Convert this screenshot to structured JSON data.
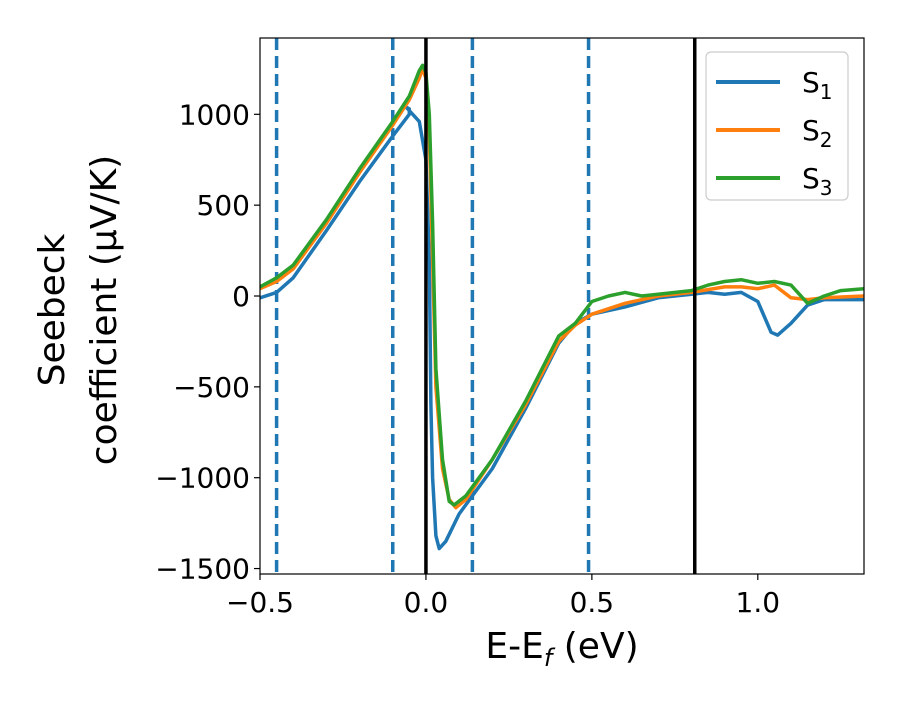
{
  "chart_data": {
    "type": "line",
    "xlabel": {
      "main": "E-E",
      "sub": "f",
      "tail": " (eV)"
    },
    "ylabel": {
      "line1": "Seebeck",
      "line2": "coefficient  (μV/K)"
    },
    "xlim": [
      -0.5,
      1.32
    ],
    "ylim": [
      -1530,
      1420
    ],
    "x_ticks": [
      -0.5,
      0.0,
      0.5,
      1.0
    ],
    "x_tick_labels": [
      "−0.5",
      "0.0",
      "0.5",
      "1.0"
    ],
    "y_ticks": [
      -1500,
      -1000,
      -500,
      0,
      500,
      1000
    ],
    "y_tick_labels": [
      "−1500",
      "−1000",
      "−500",
      "0",
      "500",
      "1000"
    ],
    "grid": false,
    "legend_position": "top-right",
    "vlines_dashed": {
      "x": [
        -0.45,
        -0.1,
        0.14,
        0.49
      ],
      "color": "#1f77b4"
    },
    "vlines_solid": {
      "x": [
        0.0,
        0.81
      ],
      "color": "#000000"
    },
    "series": [
      {
        "name": "S",
        "sub": "1",
        "color": "#1f77b4",
        "points": [
          [
            -0.5,
            -10
          ],
          [
            -0.45,
            20
          ],
          [
            -0.4,
            100
          ],
          [
            -0.3,
            360
          ],
          [
            -0.2,
            630
          ],
          [
            -0.1,
            880
          ],
          [
            -0.05,
            1000
          ],
          [
            -0.05,
            1030
          ],
          [
            -0.06,
            1040
          ],
          [
            -0.02,
            960
          ],
          [
            0.0,
            750
          ],
          [
            0.01,
            200
          ],
          [
            0.015,
            -600
          ],
          [
            0.02,
            -1000
          ],
          [
            0.03,
            -1320
          ],
          [
            0.04,
            -1390
          ],
          [
            0.06,
            -1350
          ],
          [
            0.1,
            -1200
          ],
          [
            0.2,
            -950
          ],
          [
            0.3,
            -620
          ],
          [
            0.4,
            -260
          ],
          [
            0.45,
            -150
          ],
          [
            0.5,
            -100
          ],
          [
            0.6,
            -60
          ],
          [
            0.7,
            -10
          ],
          [
            0.8,
            10
          ],
          [
            0.85,
            20
          ],
          [
            0.9,
            10
          ],
          [
            0.95,
            20
          ],
          [
            1.0,
            -30
          ],
          [
            1.04,
            -200
          ],
          [
            1.06,
            -215
          ],
          [
            1.1,
            -150
          ],
          [
            1.15,
            -50
          ],
          [
            1.2,
            -20
          ],
          [
            1.32,
            -20
          ]
        ]
      },
      {
        "name": "S",
        "sub": "2",
        "color": "#ff7f0e",
        "points": [
          [
            -0.5,
            40
          ],
          [
            -0.45,
            80
          ],
          [
            -0.4,
            150
          ],
          [
            -0.3,
            400
          ],
          [
            -0.2,
            680
          ],
          [
            -0.1,
            940
          ],
          [
            -0.05,
            1080
          ],
          [
            -0.02,
            1200
          ],
          [
            -0.01,
            1250
          ],
          [
            0.0,
            1200
          ],
          [
            0.01,
            900
          ],
          [
            0.02,
            200
          ],
          [
            0.03,
            -500
          ],
          [
            0.05,
            -950
          ],
          [
            0.07,
            -1120
          ],
          [
            0.09,
            -1165
          ],
          [
            0.12,
            -1120
          ],
          [
            0.2,
            -900
          ],
          [
            0.3,
            -600
          ],
          [
            0.4,
            -250
          ],
          [
            0.45,
            -160
          ],
          [
            0.5,
            -100
          ],
          [
            0.6,
            -40
          ],
          [
            0.7,
            0
          ],
          [
            0.8,
            20
          ],
          [
            0.9,
            50
          ],
          [
            0.95,
            50
          ],
          [
            1.0,
            40
          ],
          [
            1.05,
            60
          ],
          [
            1.1,
            -10
          ],
          [
            1.15,
            -20
          ],
          [
            1.2,
            -10
          ],
          [
            1.32,
            0
          ]
        ]
      },
      {
        "name": "S",
        "sub": "3",
        "color": "#2ca02c",
        "points": [
          [
            -0.5,
            50
          ],
          [
            -0.45,
            100
          ],
          [
            -0.4,
            170
          ],
          [
            -0.3,
            420
          ],
          [
            -0.2,
            700
          ],
          [
            -0.1,
            960
          ],
          [
            -0.05,
            1100
          ],
          [
            -0.02,
            1240
          ],
          [
            -0.01,
            1270
          ],
          [
            0.0,
            1230
          ],
          [
            0.01,
            1000
          ],
          [
            0.02,
            400
          ],
          [
            0.03,
            -400
          ],
          [
            0.05,
            -900
          ],
          [
            0.07,
            -1130
          ],
          [
            0.085,
            -1150
          ],
          [
            0.12,
            -1100
          ],
          [
            0.2,
            -900
          ],
          [
            0.3,
            -580
          ],
          [
            0.4,
            -220
          ],
          [
            0.45,
            -150
          ],
          [
            0.5,
            -30
          ],
          [
            0.55,
            0
          ],
          [
            0.6,
            20
          ],
          [
            0.65,
            0
          ],
          [
            0.7,
            10
          ],
          [
            0.8,
            30
          ],
          [
            0.85,
            60
          ],
          [
            0.9,
            80
          ],
          [
            0.95,
            90
          ],
          [
            1.0,
            70
          ],
          [
            1.05,
            80
          ],
          [
            1.1,
            60
          ],
          [
            1.15,
            -40
          ],
          [
            1.2,
            0
          ],
          [
            1.25,
            30
          ],
          [
            1.32,
            40
          ]
        ]
      }
    ]
  }
}
